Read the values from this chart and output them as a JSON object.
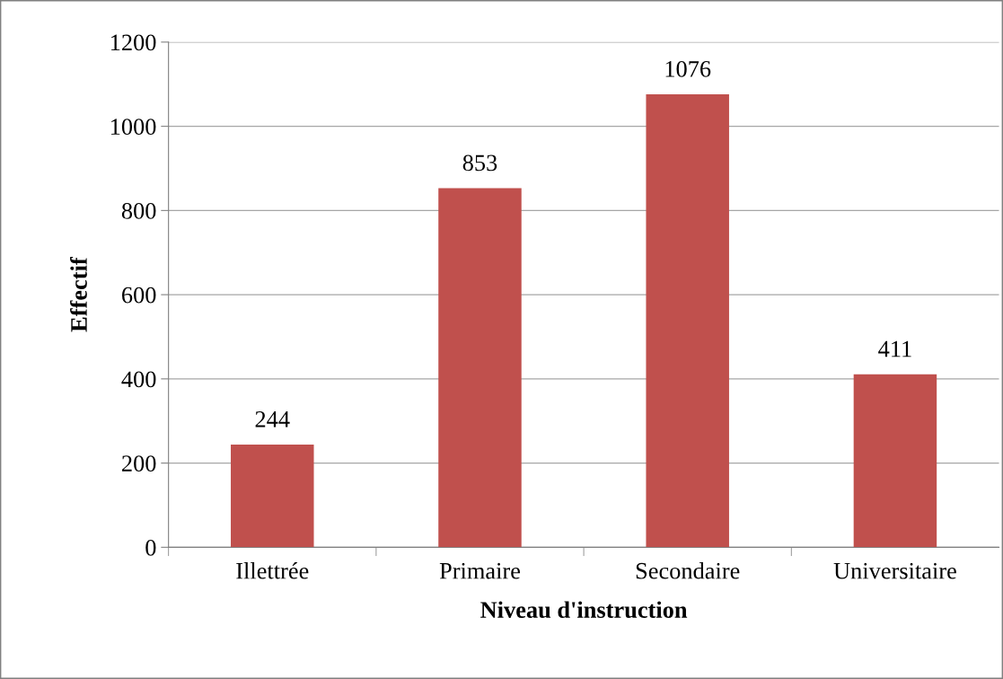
{
  "chart_data": {
    "type": "bar",
    "xlabel": "Niveau d'instruction",
    "ylabel": "Effectif",
    "categories": [
      "Illettrée",
      "Primaire",
      "Secondaire",
      "Universitaire"
    ],
    "values": [
      244,
      853,
      1076,
      411
    ],
    "color": "#c0504d",
    "ylim": [
      0,
      1200
    ],
    "yticks": [
      0,
      200,
      400,
      600,
      800,
      1000,
      1200
    ],
    "grid": "y",
    "data_labels": true
  }
}
